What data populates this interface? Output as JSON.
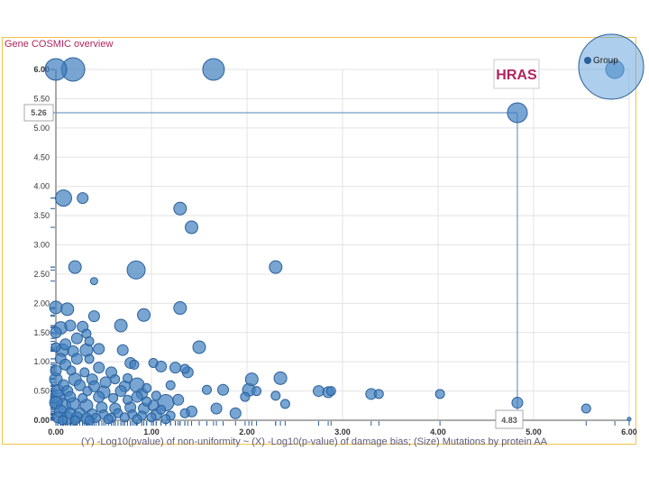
{
  "panel_title": "Gene COSMIC overview",
  "colors": {
    "frame": "#f3c24a",
    "title": "#b0245e",
    "point_fill": "#3f7fbf",
    "point_stroke": "#2a5f9a",
    "legend_fill": "#6aa6dc",
    "crosshair": "#4f86b8"
  },
  "chart_data": {
    "type": "scatter",
    "xlabel": "(Y) -Log10(pvalue) of non-uniformity ~ (X) -Log10(p-value) of damage bias; (Size) Mutations by protein AA",
    "ylabel": "",
    "xlim": [
      0,
      6
    ],
    "ylim": [
      0,
      6
    ],
    "x_ticks": [
      "0.00",
      "1.00",
      "2.00",
      "3.00",
      "4.00",
      "5.00",
      "6.00"
    ],
    "y_ticks": [
      "0.00",
      "0.50",
      "1.00",
      "1.50",
      "2.00",
      "2.50",
      "3.00",
      "3.50",
      "4.00",
      "4.50",
      "5.00",
      "5.50",
      "6.00"
    ],
    "legend": {
      "label": "Group",
      "position": "top-right"
    },
    "highlight": {
      "label": "HRAS",
      "x": 4.83,
      "y": 5.26,
      "x_label": "4.83",
      "y_label": "5.26"
    },
    "series": [
      {
        "points": [
          [
            0.0,
            6.0,
            12
          ],
          [
            0.18,
            6.0,
            13
          ],
          [
            1.65,
            6.0,
            12
          ],
          [
            5.85,
            6.0,
            10
          ],
          [
            4.83,
            5.26,
            11
          ],
          [
            0.08,
            3.8,
            9
          ],
          [
            0.28,
            3.8,
            6
          ],
          [
            1.3,
            3.62,
            7
          ],
          [
            1.42,
            3.3,
            7
          ],
          [
            0.2,
            2.62,
            7
          ],
          [
            0.84,
            2.57,
            10
          ],
          [
            2.3,
            2.62,
            7
          ],
          [
            0.4,
            2.38,
            4
          ],
          [
            0.0,
            1.93,
            7
          ],
          [
            0.12,
            1.9,
            7
          ],
          [
            0.4,
            1.78,
            6
          ],
          [
            0.92,
            1.8,
            7
          ],
          [
            1.3,
            1.92,
            7
          ],
          [
            0.68,
            1.62,
            7
          ],
          [
            0.05,
            1.58,
            7
          ],
          [
            0.15,
            1.62,
            6
          ],
          [
            0.28,
            1.6,
            6
          ],
          [
            0.0,
            1.5,
            6
          ],
          [
            0.32,
            1.48,
            5
          ],
          [
            0.22,
            1.4,
            6
          ],
          [
            0.35,
            1.35,
            5
          ],
          [
            0.1,
            1.3,
            6
          ],
          [
            0.0,
            1.25,
            5
          ],
          [
            0.07,
            1.2,
            7
          ],
          [
            0.18,
            1.18,
            6
          ],
          [
            0.32,
            1.2,
            7
          ],
          [
            0.45,
            1.22,
            6
          ],
          [
            0.7,
            1.2,
            6
          ],
          [
            1.5,
            1.25,
            7
          ],
          [
            0.05,
            1.05,
            6
          ],
          [
            0.22,
            1.05,
            6
          ],
          [
            0.35,
            1.05,
            5
          ],
          [
            0.78,
            0.98,
            6
          ],
          [
            0.82,
            0.95,
            5
          ],
          [
            1.02,
            0.98,
            5
          ],
          [
            0.1,
            0.95,
            6
          ],
          [
            0.45,
            0.9,
            6
          ],
          [
            1.1,
            0.92,
            6
          ],
          [
            1.25,
            0.9,
            6
          ],
          [
            1.35,
            0.88,
            5
          ],
          [
            1.38,
            0.82,
            6
          ],
          [
            0.0,
            0.85,
            6
          ],
          [
            0.16,
            0.85,
            5
          ],
          [
            0.3,
            0.82,
            5
          ],
          [
            0.58,
            0.82,
            6
          ],
          [
            0.85,
            0.6,
            8
          ],
          [
            0.52,
            0.65,
            6
          ],
          [
            0.0,
            0.7,
            7
          ],
          [
            0.2,
            0.7,
            7
          ],
          [
            0.38,
            0.7,
            6
          ],
          [
            0.62,
            0.7,
            5
          ],
          [
            0.75,
            0.72,
            5
          ],
          [
            0.08,
            0.6,
            6
          ],
          [
            0.25,
            0.6,
            6
          ],
          [
            0.4,
            0.58,
            6
          ],
          [
            0.72,
            0.58,
            6
          ],
          [
            1.2,
            0.6,
            5
          ],
          [
            0.95,
            0.55,
            5
          ],
          [
            0.02,
            0.5,
            7
          ],
          [
            0.12,
            0.5,
            6
          ],
          [
            0.33,
            0.5,
            5
          ],
          [
            0.5,
            0.48,
            7
          ],
          [
            0.68,
            0.5,
            6
          ],
          [
            0.9,
            0.45,
            6
          ],
          [
            1.05,
            0.42,
            5
          ],
          [
            1.58,
            0.52,
            5
          ],
          [
            1.75,
            0.52,
            6
          ],
          [
            1.98,
            0.4,
            5
          ],
          [
            2.02,
            0.52,
            7
          ],
          [
            2.05,
            0.7,
            7
          ],
          [
            2.1,
            0.5,
            5
          ],
          [
            2.3,
            0.42,
            5
          ],
          [
            2.35,
            0.72,
            7
          ],
          [
            2.4,
            0.28,
            5
          ],
          [
            2.75,
            0.5,
            6
          ],
          [
            2.85,
            0.48,
            6
          ],
          [
            2.88,
            0.5,
            5
          ],
          [
            3.3,
            0.45,
            6
          ],
          [
            3.38,
            0.45,
            5
          ],
          [
            4.02,
            0.45,
            5
          ],
          [
            4.83,
            0.3,
            6
          ],
          [
            5.55,
            0.2,
            5
          ],
          [
            0.02,
            0.4,
            8
          ],
          [
            0.15,
            0.4,
            6
          ],
          [
            0.28,
            0.38,
            5
          ],
          [
            0.45,
            0.4,
            6
          ],
          [
            0.6,
            0.38,
            5
          ],
          [
            0.75,
            0.35,
            5
          ],
          [
            0.85,
            0.4,
            6
          ],
          [
            0.95,
            0.32,
            5
          ],
          [
            1.15,
            0.3,
            9
          ],
          [
            1.28,
            0.35,
            6
          ],
          [
            1.42,
            0.15,
            6
          ],
          [
            1.68,
            0.2,
            6
          ],
          [
            0.0,
            0.3,
            7
          ],
          [
            0.08,
            0.25,
            8
          ],
          [
            0.18,
            0.28,
            7
          ],
          [
            0.32,
            0.25,
            7
          ],
          [
            0.48,
            0.22,
            6
          ],
          [
            0.62,
            0.2,
            6
          ],
          [
            0.78,
            0.22,
            6
          ],
          [
            0.92,
            0.2,
            6
          ],
          [
            1.02,
            0.25,
            6
          ],
          [
            1.1,
            0.18,
            5
          ],
          [
            1.35,
            0.12,
            5
          ],
          [
            1.88,
            0.12,
            6
          ],
          [
            0.05,
            0.15,
            7
          ],
          [
            0.15,
            0.12,
            6
          ],
          [
            0.25,
            0.12,
            6
          ],
          [
            0.38,
            0.1,
            6
          ],
          [
            0.5,
            0.1,
            5
          ],
          [
            0.65,
            0.12,
            5
          ],
          [
            0.8,
            0.1,
            5
          ],
          [
            0.9,
            0.08,
            5
          ],
          [
            1.05,
            0.1,
            6
          ],
          [
            1.2,
            0.08,
            5
          ],
          [
            0.72,
            0.05,
            5
          ],
          [
            0.58,
            0.04,
            5
          ],
          [
            0.02,
            0.05,
            6
          ],
          [
            0.12,
            0.04,
            7
          ],
          [
            0.22,
            0.05,
            6
          ],
          [
            0.32,
            0.03,
            6
          ],
          [
            0.42,
            0.04,
            5
          ],
          [
            1.0,
            0.05,
            5
          ],
          [
            0.07,
            0.0,
            5
          ],
          [
            0.2,
            0.0,
            5
          ],
          [
            0.35,
            0.0,
            5
          ],
          [
            0.55,
            0.02,
            5
          ],
          [
            0.85,
            0.02,
            5
          ],
          [
            1.15,
            0.02,
            5
          ],
          [
            6.0,
            0.02,
            2
          ]
        ]
      }
    ]
  }
}
